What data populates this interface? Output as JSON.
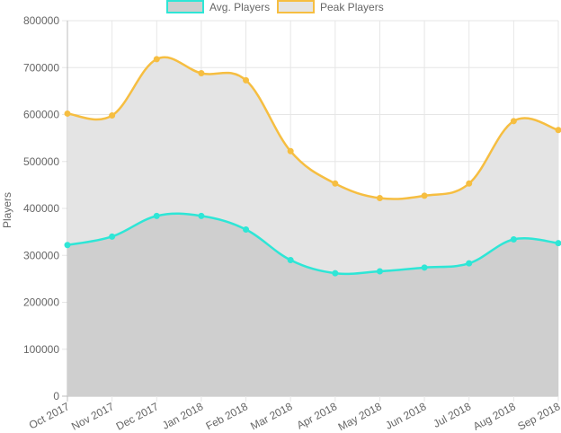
{
  "chart_data": {
    "type": "area",
    "categories": [
      "Oct 2017",
      "Nov 2017",
      "Dec 2017",
      "Jan 2018",
      "Feb 2018",
      "Mar 2018",
      "Apr 2018",
      "May 2018",
      "Jun 2018",
      "Jul 2018",
      "Aug 2018",
      "Sep 2018"
    ],
    "series": [
      {
        "name": "Avg. Players",
        "color": "#2ee6d6",
        "fill": "#cfcfcf",
        "values": [
          322000,
          340000,
          384000,
          384000,
          355000,
          290000,
          262000,
          266000,
          274000,
          283000,
          334000,
          326000
        ]
      },
      {
        "name": "Peak Players",
        "color": "#f6be41",
        "fill": "#e4e4e4",
        "values": [
          602000,
          598000,
          718000,
          688000,
          673000,
          522000,
          453000,
          422000,
          427000,
          453000,
          586000,
          567000
        ]
      }
    ],
    "ylabel": "Players",
    "xlabel": "",
    "ylim": [
      0,
      800000
    ],
    "yticks": [
      "0",
      "100000",
      "200000",
      "300000",
      "400000",
      "500000",
      "600000",
      "700000",
      "800000"
    ],
    "grid": true,
    "legend": "top"
  }
}
